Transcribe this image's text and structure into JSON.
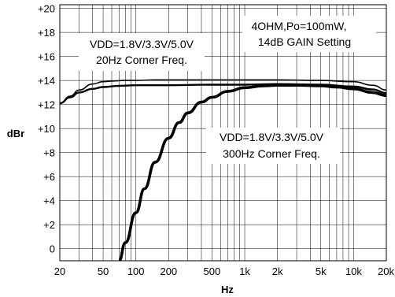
{
  "chart_data": {
    "type": "line",
    "xscale": "log",
    "xlabel": "Hz",
    "ylabel": "dBr",
    "xlim": [
      20,
      20000
    ],
    "ylim": [
      -1,
      20.3
    ],
    "grid": true,
    "x_ticks": [
      {
        "value": 20,
        "label": "20"
      },
      {
        "value": 50,
        "label": "50"
      },
      {
        "value": 100,
        "label": "100"
      },
      {
        "value": 200,
        "label": "200"
      },
      {
        "value": 500,
        "label": "500"
      },
      {
        "value": 1000,
        "label": "1k"
      },
      {
        "value": 2000,
        "label": "2k"
      },
      {
        "value": 5000,
        "label": "5k"
      },
      {
        "value": 10000,
        "label": "10k"
      },
      {
        "value": 20000,
        "label": "20k"
      }
    ],
    "y_ticks": [
      {
        "value": 0,
        "label": "0"
      },
      {
        "value": 2,
        "label": "+2"
      },
      {
        "value": 4,
        "label": "+4"
      },
      {
        "value": 6,
        "label": "+6"
      },
      {
        "value": 8,
        "label": "+8"
      },
      {
        "value": 10,
        "label": "+10"
      },
      {
        "value": 12,
        "label": "+12"
      },
      {
        "value": 14,
        "label": "+14"
      },
      {
        "value": 16,
        "label": "+16"
      },
      {
        "value": 18,
        "label": "+18"
      },
      {
        "value": 20,
        "label": "+20"
      }
    ],
    "series": [
      {
        "color": "#000000",
        "stroke": "thin",
        "x": [
          20,
          25,
          30,
          40,
          50,
          60,
          80,
          100,
          150,
          200,
          500,
          1000,
          2000,
          5000,
          10000,
          15000,
          20000
        ],
        "y": [
          12.1,
          12.7,
          13.2,
          13.7,
          13.9,
          13.95,
          14.0,
          14.0,
          14.05,
          14.05,
          14.05,
          14.05,
          14.05,
          14.0,
          13.9,
          13.6,
          13.2
        ]
      },
      {
        "color": "#000000",
        "stroke": "medium",
        "x": [
          20,
          25,
          30,
          40,
          50,
          70,
          100,
          200,
          500,
          1000,
          2000,
          5000,
          10000,
          15000,
          20000
        ],
        "y": [
          12.1,
          12.6,
          13.0,
          13.3,
          13.45,
          13.55,
          13.6,
          13.6,
          13.65,
          13.65,
          13.7,
          13.65,
          13.5,
          13.25,
          12.95
        ]
      },
      {
        "color": "#000000",
        "stroke": "thick",
        "x": [
          70,
          80,
          100,
          120,
          150,
          200,
          250,
          300,
          400,
          500,
          700,
          1000,
          1500,
          2000,
          3000,
          5000,
          7000,
          10000,
          15000,
          20000
        ],
        "y": [
          -1,
          0.5,
          3.0,
          5.0,
          7.2,
          9.2,
          10.5,
          11.3,
          12.2,
          12.6,
          13.1,
          13.4,
          13.55,
          13.6,
          13.6,
          13.55,
          13.45,
          13.3,
          13.0,
          12.75
        ]
      }
    ],
    "annotations": {
      "a1_line1": "VDD=1.8V/3.3V/5.0V",
      "a1_line2": "20Hz Corner Freq.",
      "a2_line1": "4OHM,Po=100mW,",
      "a2_line2": "14dB GAIN Setting",
      "a3_line1": "VDD=1.8V/3.3V/5.0V",
      "a3_line2": "300Hz Corner Freq."
    }
  }
}
